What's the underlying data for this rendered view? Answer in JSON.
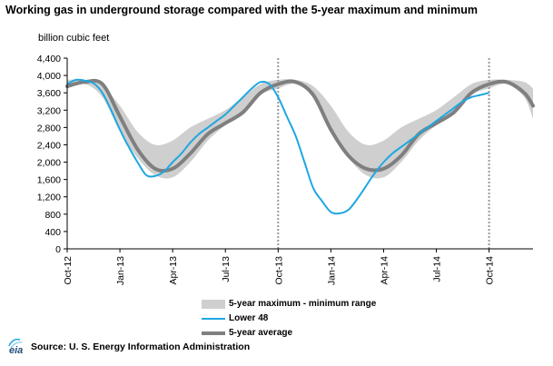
{
  "title": "Working gas in underground storage compared with the  5-year maximum and minimum",
  "unit_label": "billion  cubic feet",
  "source": "Source:  U. S. Energy Information Administration",
  "logo_text": "eia",
  "colors": {
    "range": "#cfcfcf",
    "lower48": "#1fa7e1",
    "avg": "#7f7f7f",
    "axis": "#000000",
    "divider": "#9a9a9a"
  },
  "chart_data": {
    "type": "line",
    "title": "Working gas in underground storage compared with the  5-year maximum and minimum",
    "ylabel": "billion  cubic feet",
    "xlabel": "",
    "ylim": [
      0,
      4400
    ],
    "yticks": [
      0,
      400,
      800,
      1200,
      1600,
      2000,
      2400,
      2800,
      3200,
      3600,
      4000,
      4400
    ],
    "ytick_labels": [
      "0",
      "400",
      "800",
      "1,200",
      "1,600",
      "2,000",
      "2,400",
      "2,800",
      "3,200",
      "3,600",
      "4,000",
      "4,400"
    ],
    "xlim": [
      0,
      26.5
    ],
    "x_unit": "months since Oct-12",
    "xticks": [
      0,
      3,
      6,
      9,
      12,
      15,
      18,
      21,
      24
    ],
    "xtick_labels": [
      "Oct-12",
      "Jan-13",
      "Apr-13",
      "Jul-13",
      "Oct-13",
      "Jan-14",
      "Apr-14",
      "Jul-14",
      "Oct-14"
    ],
    "dividers": [
      "Oct-13",
      "Oct-14"
    ],
    "grid": false,
    "legend": [
      "5-year maximum - minimum range",
      "Lower 48",
      "5-year average"
    ],
    "legend_position": "bottom-center",
    "series": [
      {
        "name": "5-year maximum - minimum range",
        "kind": "band",
        "x": [
          0,
          1,
          2,
          3,
          4,
          5,
          6,
          7,
          8,
          9,
          10,
          11,
          12,
          13,
          14,
          15,
          16,
          17,
          18,
          19,
          20,
          21,
          22,
          23,
          24,
          25,
          26,
          26.5
        ],
        "upper": [
          3900,
          3900,
          3750,
          3300,
          2700,
          2400,
          2500,
          2800,
          3000,
          3200,
          3500,
          3800,
          3900,
          3900,
          3750,
          3300,
          2700,
          2400,
          2500,
          2800,
          3000,
          3200,
          3500,
          3800,
          3900,
          3900,
          3850,
          3700
        ],
        "lower": [
          3700,
          3800,
          3500,
          2700,
          2100,
          1700,
          1650,
          2000,
          2500,
          2850,
          3100,
          3550,
          3700,
          3800,
          3500,
          2700,
          2100,
          1700,
          1650,
          2000,
          2500,
          2850,
          3100,
          3550,
          3700,
          3800,
          3500,
          3000
        ]
      },
      {
        "name": "Lower 48",
        "x": [
          0,
          0.5,
          1,
          1.5,
          2,
          2.5,
          3,
          3.5,
          4,
          4.5,
          5,
          5.5,
          6,
          6.5,
          7,
          7.5,
          8,
          8.5,
          9,
          9.5,
          10,
          10.5,
          11,
          11.5,
          12,
          12.5,
          13,
          13.5,
          14,
          14.5,
          15,
          15.5,
          16,
          16.5,
          17,
          17.5,
          18,
          18.5,
          19,
          19.5,
          20,
          20.5,
          21,
          21.5,
          22,
          22.5,
          23,
          23.5,
          24
        ],
        "values": [
          3800,
          3900,
          3880,
          3820,
          3600,
          3200,
          2750,
          2350,
          2000,
          1700,
          1680,
          1780,
          2000,
          2200,
          2450,
          2650,
          2800,
          2950,
          3100,
          3300,
          3500,
          3700,
          3850,
          3800,
          3500,
          3050,
          2600,
          2000,
          1400,
          1100,
          850,
          820,
          900,
          1150,
          1450,
          1750,
          2000,
          2200,
          2350,
          2500,
          2650,
          2800,
          2950,
          3100,
          3250,
          3400,
          3500,
          3550,
          3600
        ]
      },
      {
        "name": "5-year average",
        "x": [
          0,
          1,
          2,
          3,
          4,
          5,
          6,
          7,
          8,
          9,
          10,
          11,
          12,
          13,
          14,
          15,
          16,
          17,
          18,
          19,
          20,
          21,
          22,
          23,
          24,
          25,
          26,
          26.5
        ],
        "values": [
          3750,
          3850,
          3800,
          3050,
          2300,
          1850,
          1850,
          2200,
          2650,
          2900,
          3150,
          3600,
          3800,
          3850,
          3550,
          2750,
          2150,
          1850,
          1850,
          2150,
          2650,
          2900,
          3150,
          3600,
          3800,
          3850,
          3600,
          3300
        ]
      }
    ]
  }
}
